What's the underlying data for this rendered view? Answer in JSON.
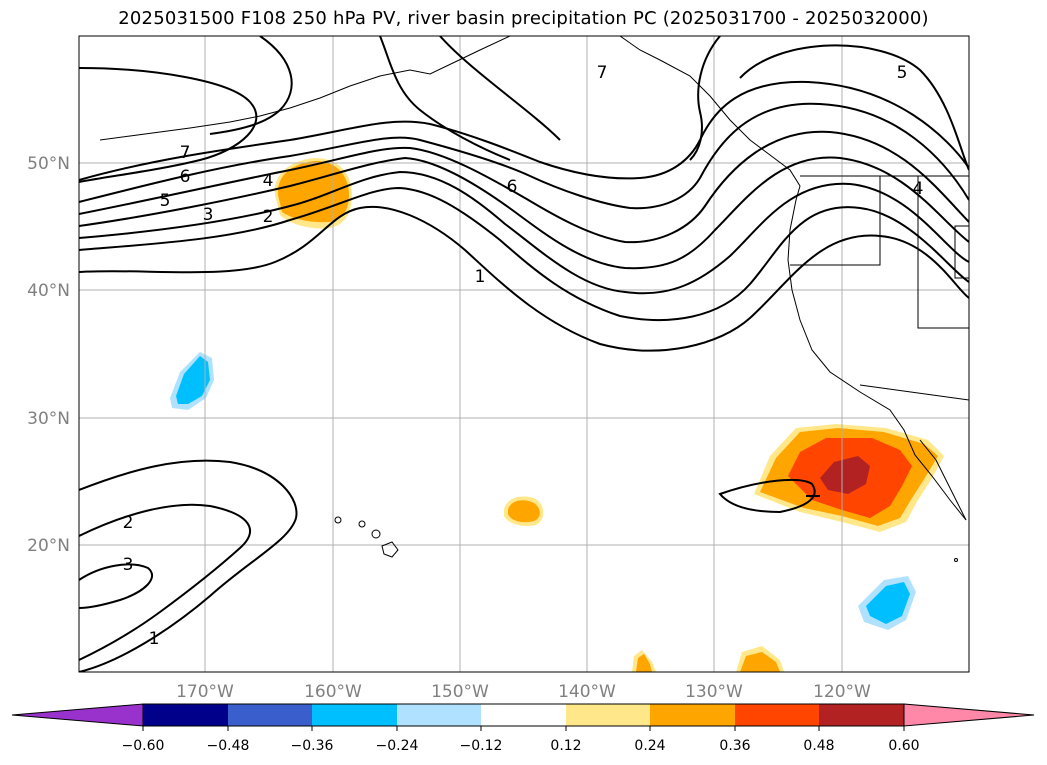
{
  "title": "2025031500 F108 250 hPa PV, river basin precipitation PC (2025031700 - 2025032000)",
  "map": {
    "lon_range": [
      -180,
      -110
    ],
    "lat_range": [
      10,
      60
    ],
    "lon_ticks": [
      "170°W",
      "160°W",
      "150°W",
      "140°W",
      "130°W",
      "120°W"
    ],
    "lat_ticks": [
      "50°N",
      "40°N",
      "30°N",
      "20°N"
    ],
    "grid": true,
    "pv_contour_labels": [
      "7",
      "6",
      "5",
      "4",
      "3",
      "2",
      "1",
      "6",
      "7",
      "5",
      "4",
      "2",
      "3",
      "1"
    ],
    "shaded_field": "river basin precipitation PC",
    "contour_field": "250 hPa PV"
  },
  "colorbar": {
    "ticks": [
      "−0.60",
      "−0.48",
      "−0.36",
      "−0.24",
      "−0.12",
      "0.12",
      "0.24",
      "0.36",
      "0.48",
      "0.60"
    ],
    "colors": [
      "#9932cc",
      "#00008b",
      "#3a5fcd",
      "#00bfff",
      "#b0e2ff",
      "#ffffff",
      "#ffe78a",
      "#ffa500",
      "#ff4500",
      "#b22222",
      "#ff88a8"
    ],
    "extend": "both"
  }
}
